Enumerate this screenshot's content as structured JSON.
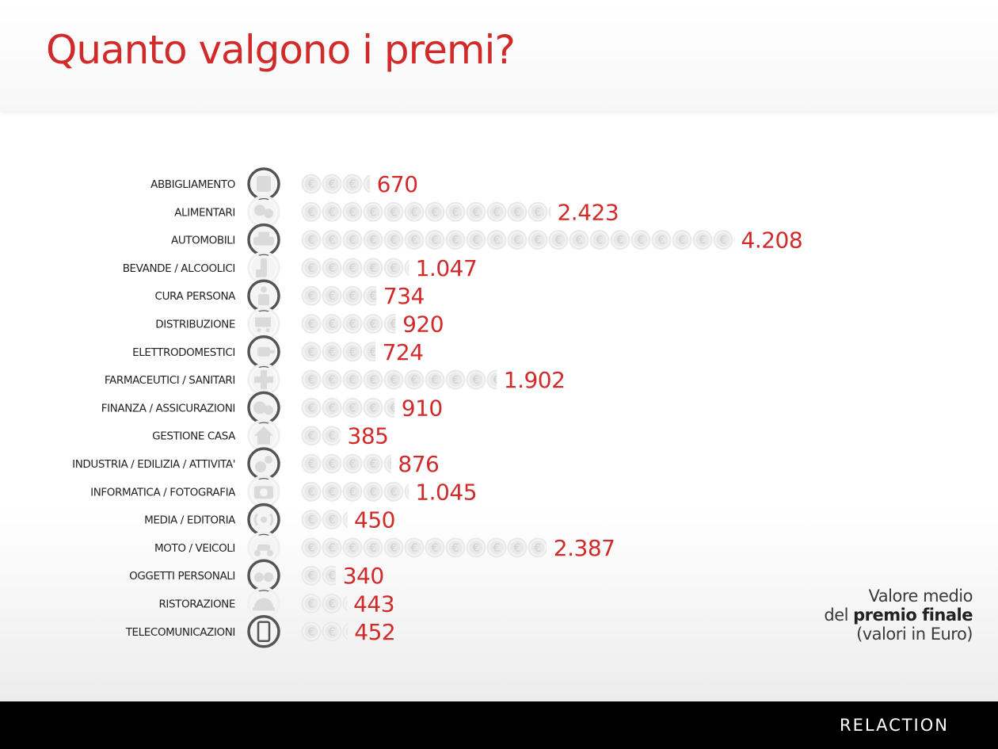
{
  "page": {
    "title": "Quanto valgono i premi?",
    "logo": "RELACTION",
    "note": {
      "line1": "Valore medio",
      "line2_pre": "del ",
      "line2_bold": "premio finale",
      "line3": "(valori in Euro)"
    }
  },
  "colors": {
    "accent": "#d12a2a",
    "coin": "#e9e9e9",
    "coin_glyph": "#d0d0d0",
    "label": "#222222"
  },
  "chart_data": {
    "type": "bar",
    "title": "Quanto valgono i premi?",
    "unit_per_coin": 200,
    "categories": [
      {
        "label": "ABBIGLIAMENTO",
        "value": 670,
        "display": "670",
        "icon": "shirt-icon"
      },
      {
        "label": "ALIMENTARI",
        "value": 2423,
        "display": "2.423",
        "icon": "food-icon"
      },
      {
        "label": "AUTOMOBILI",
        "value": 4208,
        "display": "4.208",
        "icon": "car-icon"
      },
      {
        "label": "BEVANDE / ALCOOLICI",
        "value": 1047,
        "display": "1.047",
        "icon": "bottle-icon"
      },
      {
        "label": "CURA PERSONA",
        "value": 734,
        "display": "734",
        "icon": "cosmetics-icon"
      },
      {
        "label": "DISTRIBUZIONE",
        "value": 920,
        "display": "920",
        "icon": "cart-icon"
      },
      {
        "label": "ELETTRODOMESTICI",
        "value": 724,
        "display": "724",
        "icon": "plug-icon"
      },
      {
        "label": "FARMACEUTICI / SANITARI",
        "value": 1902,
        "display": "1.902",
        "icon": "cross-icon"
      },
      {
        "label": "FINANZA / ASSICURAZIONI",
        "value": 910,
        "display": "910",
        "icon": "money-icon"
      },
      {
        "label": "GESTIONE CASA",
        "value": 385,
        "display": "385",
        "icon": "house-icon"
      },
      {
        "label": "INDUSTRIA / EDILIZIA / ATTIVITA'",
        "value": 876,
        "display": "876",
        "icon": "gear-icon"
      },
      {
        "label": "INFORMATICA / FOTOGRAFIA",
        "value": 1045,
        "display": "1.045",
        "icon": "camera-icon"
      },
      {
        "label": "MEDIA / EDITORIA",
        "value": 450,
        "display": "450",
        "icon": "broadcast-icon"
      },
      {
        "label": "MOTO / VEICOLI",
        "value": 2387,
        "display": "2.387",
        "icon": "scooter-icon"
      },
      {
        "label": "OGGETTI PERSONALI",
        "value": 340,
        "display": "340",
        "icon": "glasses-icon"
      },
      {
        "label": "RISTORAZIONE",
        "value": 443,
        "display": "443",
        "icon": "cloche-icon"
      },
      {
        "label": "TELECOMUNICAZIONI",
        "value": 452,
        "display": "452",
        "icon": "phone-icon"
      }
    ]
  }
}
